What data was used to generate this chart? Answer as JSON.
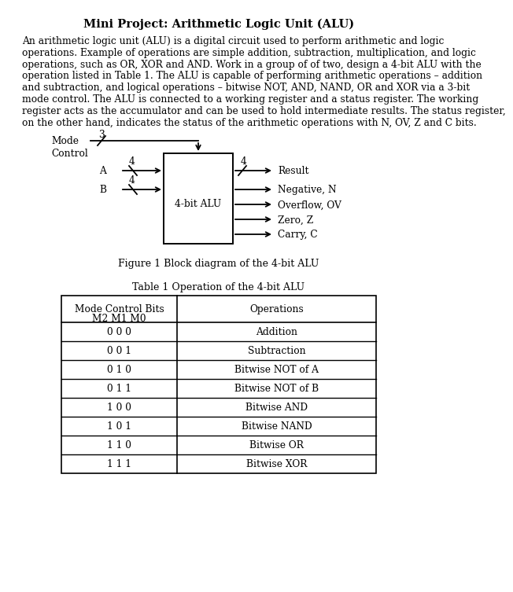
{
  "title": "Mini Project: Arithmetic Logic Unit (ALU)",
  "body_lines": [
    "An arithmetic logic unit (ALU) is a digital circuit used to perform arithmetic and logic",
    "operations. Example of operations are simple addition, subtraction, multiplication, and logic",
    "operations, such as OR, XOR and AND. Work in a group of of two, design a 4-bit ALU with the",
    "operation listed in Table 1. The ALU is capable of performing arithmetic operations – addition",
    "and subtraction, and logical operations – bitwise NOT, AND, NAND, OR and XOR via a 3-bit",
    "mode control. The ALU is connected to a working register and a status register. The working",
    "register acts as the accumulator and can be used to hold intermediate results. The status register,",
    "on the other hand, indicates the status of the arithmetic operations with N, OV, Z and C bits."
  ],
  "figure_caption": "Figure 1 Block diagram of the 4-bit ALU",
  "table_title": "Table 1 Operation of the 4-bit ALU",
  "table_col1_header_line1": "Mode Control Bits",
  "table_col1_header_line2": "M2 M1 M0",
  "table_col2_header": "Operations",
  "table_rows": [
    [
      "0 0 0",
      "Addition"
    ],
    [
      "0 0 1",
      "Subtraction"
    ],
    [
      "0 1 0",
      "Bitwise NOT of A"
    ],
    [
      "0 1 1",
      "Bitwise NOT of B"
    ],
    [
      "1 0 0",
      "Bitwise AND"
    ],
    [
      "1 0 1",
      "Bitwise NAND"
    ],
    [
      "1 1 0",
      "Bitwise OR"
    ],
    [
      "1 1 1",
      "Bitwise XOR"
    ]
  ],
  "bg_color": "#ffffff",
  "text_color": "#000000"
}
